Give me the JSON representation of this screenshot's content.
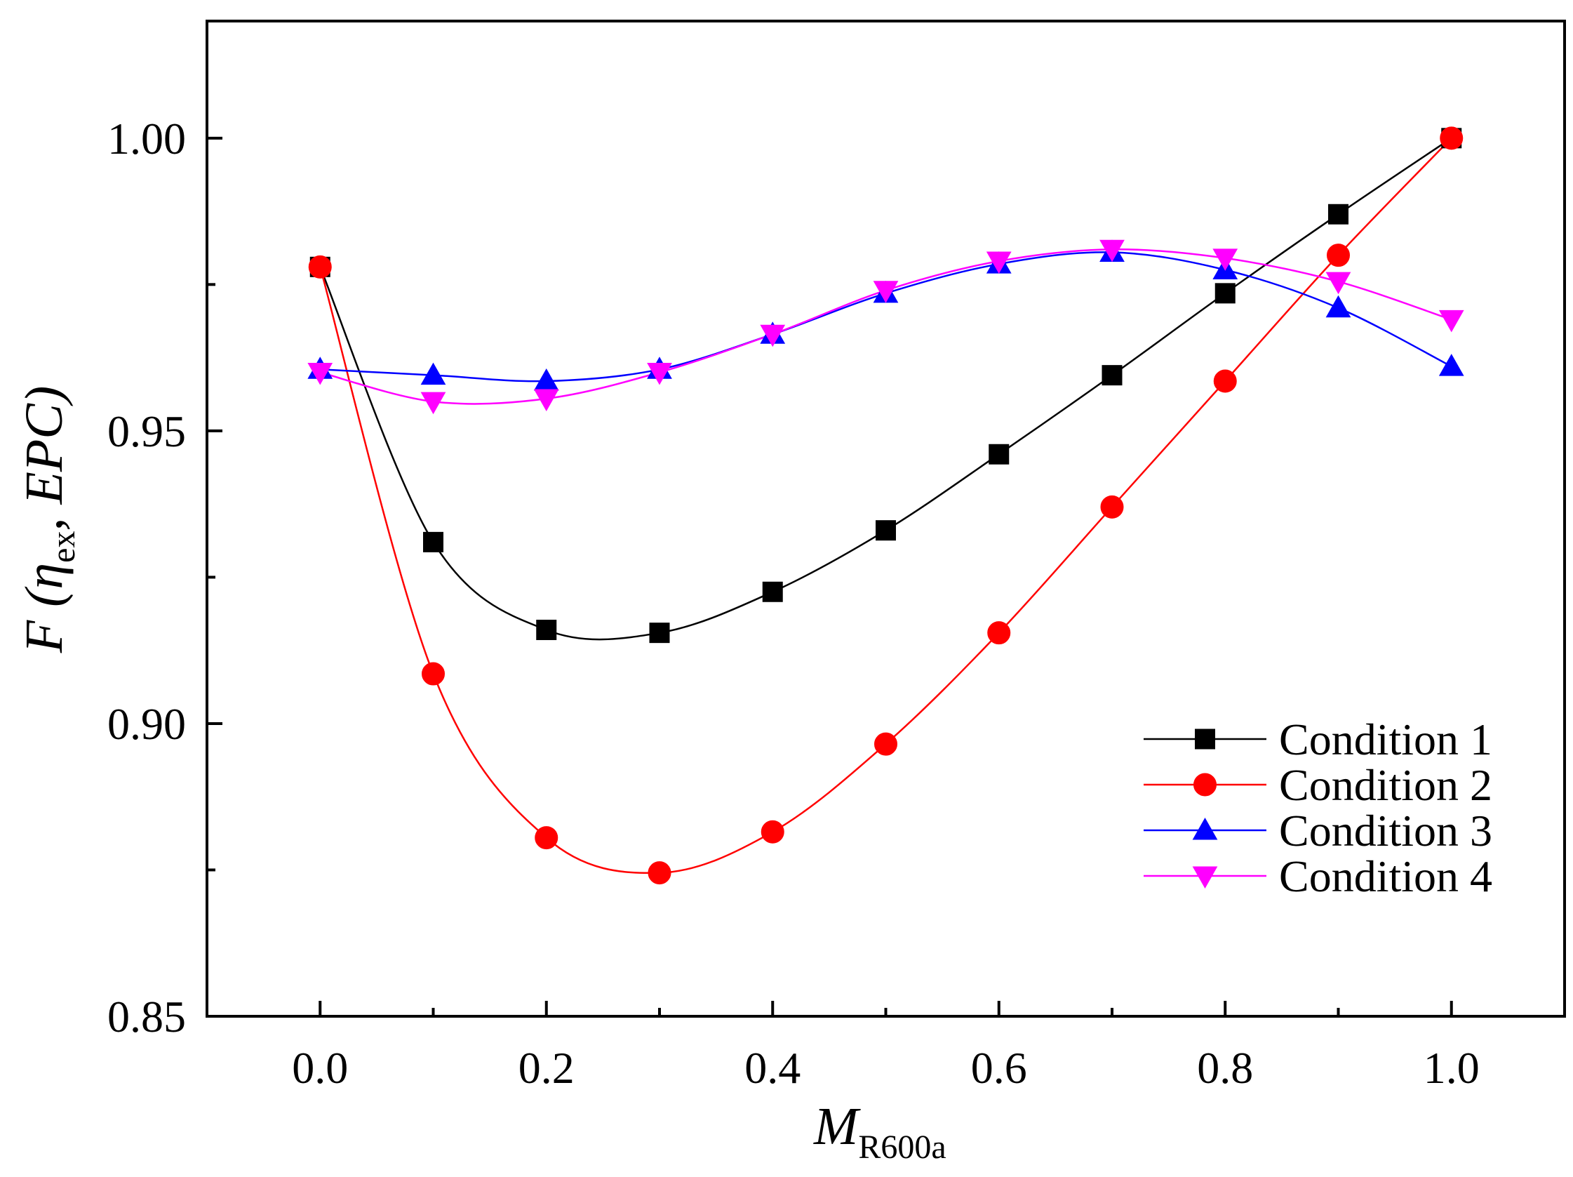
{
  "chart_data": {
    "type": "line",
    "xlabel": {
      "main": "M",
      "sub": "R600a"
    },
    "ylabel": {
      "prefix": "F (",
      "eta": "η",
      "sub": "ex",
      "suffix": ", EPC)"
    },
    "xlim": [
      -0.1,
      1.1
    ],
    "ylim": [
      0.85,
      1.02
    ],
    "xticks": [
      "0.0",
      "0.2",
      "0.4",
      "0.6",
      "0.8",
      "1.0"
    ],
    "xtick_values": [
      0.0,
      0.2,
      0.4,
      0.6,
      0.8,
      1.0
    ],
    "xminor_values": [
      0.1,
      0.3,
      0.5,
      0.7,
      0.9
    ],
    "yticks": [
      "0.85",
      "0.90",
      "0.95",
      "1.00"
    ],
    "ytick_values": [
      0.85,
      0.9,
      0.95,
      1.0
    ],
    "yminor_values": [
      0.875,
      0.925,
      0.975
    ],
    "x": [
      0.0,
      0.1,
      0.2,
      0.3,
      0.4,
      0.5,
      0.6,
      0.7,
      0.8,
      0.9,
      1.0
    ],
    "series": [
      {
        "name": "Condition 1",
        "color": "#000000",
        "marker": "square",
        "values": [
          0.978,
          0.931,
          0.916,
          0.9155,
          0.9225,
          0.933,
          0.946,
          0.9595,
          0.9735,
          0.987,
          1.0
        ]
      },
      {
        "name": "Condition 2",
        "color": "#ff0000",
        "marker": "circle",
        "values": [
          0.978,
          0.9085,
          0.8805,
          0.8745,
          0.8815,
          0.8965,
          0.9155,
          0.937,
          0.9585,
          0.98,
          1.0
        ]
      },
      {
        "name": "Condition 3",
        "color": "#0000ff",
        "marker": "triangle-up",
        "values": [
          0.9605,
          0.9595,
          0.9585,
          0.9605,
          0.9665,
          0.9735,
          0.9785,
          0.9805,
          0.9775,
          0.971,
          0.961
        ]
      },
      {
        "name": "Condition 4",
        "color": "#ff00ff",
        "marker": "triangle-down",
        "values": [
          0.96,
          0.955,
          0.9555,
          0.96,
          0.9665,
          0.974,
          0.979,
          0.981,
          0.9795,
          0.9755,
          0.969
        ]
      }
    ],
    "legend_position": "lower-right",
    "grid": false
  }
}
